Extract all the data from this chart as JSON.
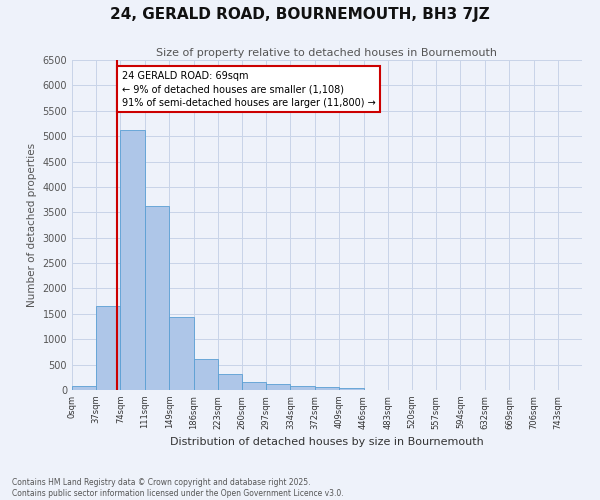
{
  "title": "24, GERALD ROAD, BOURNEMOUTH, BH3 7JZ",
  "subtitle": "Size of property relative to detached houses in Bournemouth",
  "xlabel": "Distribution of detached houses by size in Bournemouth",
  "ylabel": "Number of detached properties",
  "footer": "Contains HM Land Registry data © Crown copyright and database right 2025.\nContains public sector information licensed under the Open Government Licence v3.0.",
  "annotation_title": "24 GERALD ROAD: 69sqm",
  "annotation_line1": "← 9% of detached houses are smaller (1,108)",
  "annotation_line2": "91% of semi-detached houses are larger (11,800) →",
  "property_size_sqm": 69,
  "bar_bins": [
    0,
    37,
    74,
    111,
    149,
    186,
    223,
    260,
    297,
    334,
    372,
    409,
    446,
    483,
    520,
    557,
    594,
    632,
    669,
    706,
    743
  ],
  "bar_heights": [
    70,
    1650,
    5120,
    3630,
    1440,
    620,
    310,
    155,
    110,
    80,
    55,
    40,
    0,
    0,
    0,
    0,
    0,
    0,
    0,
    0
  ],
  "bar_color": "#aec6e8",
  "bar_edge_color": "#5a9fd4",
  "vline_x": 69,
  "vline_color": "#cc0000",
  "annotation_box_color": "#cc0000",
  "background_color": "#eef2fa",
  "grid_color": "#c8d4e8",
  "ylim": [
    0,
    6500
  ],
  "yticks": [
    0,
    500,
    1000,
    1500,
    2000,
    2500,
    3000,
    3500,
    4000,
    4500,
    5000,
    5500,
    6000,
    6500
  ]
}
